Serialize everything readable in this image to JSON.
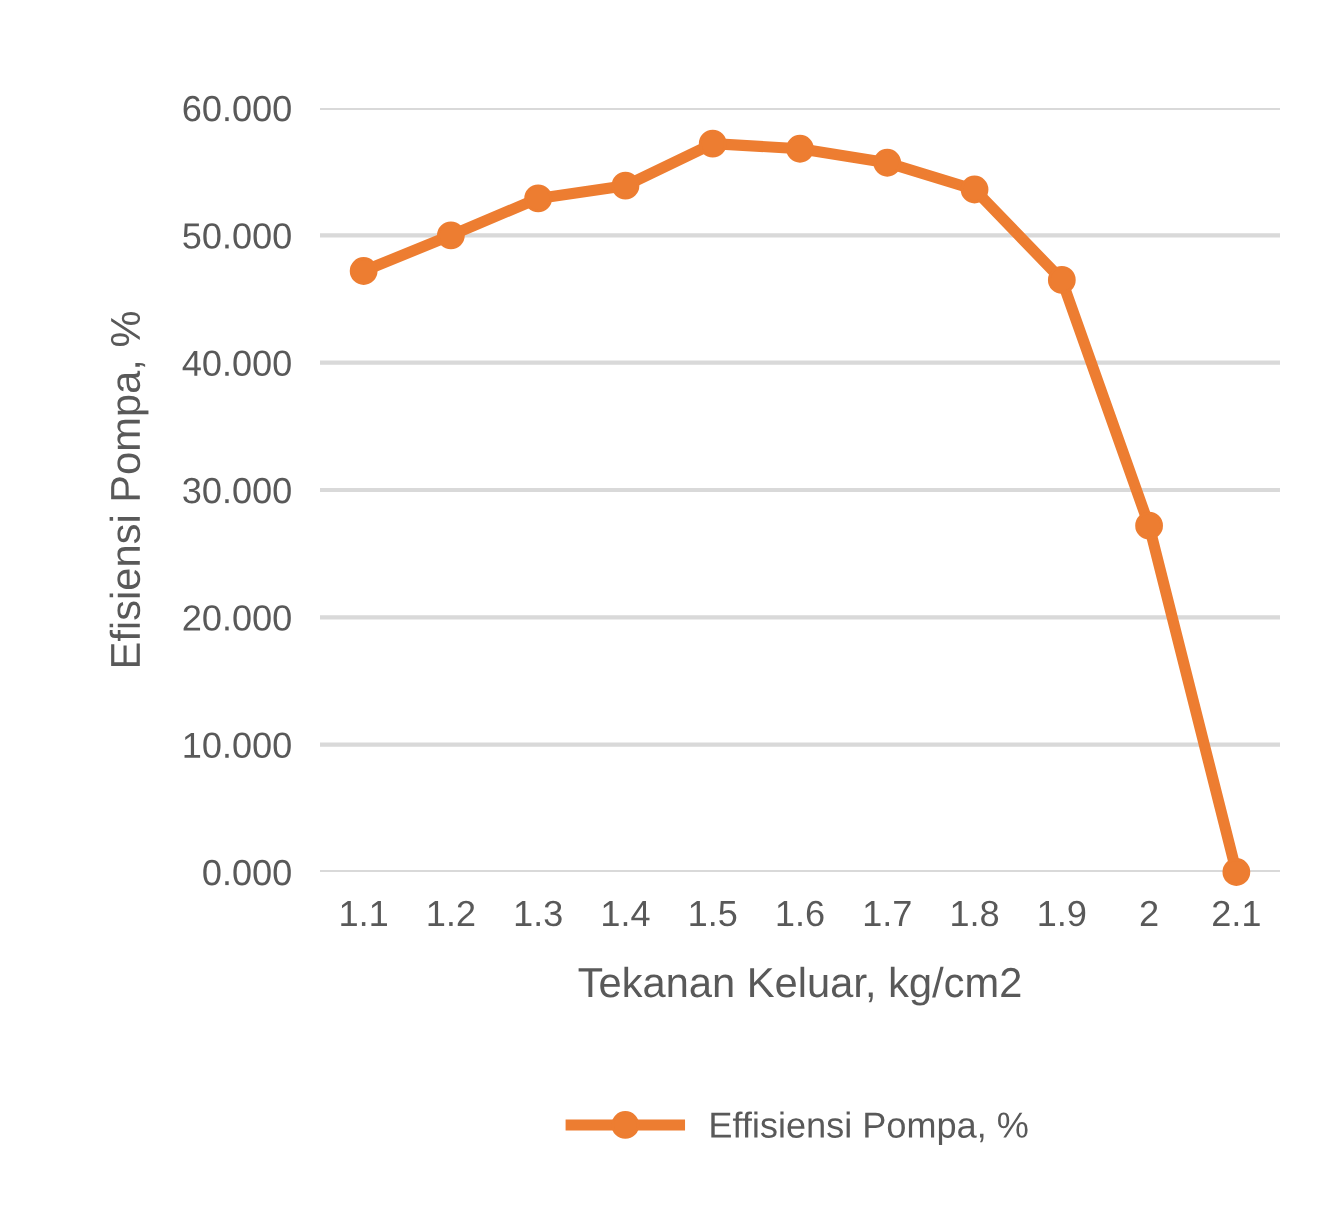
{
  "chart_data": {
    "type": "line",
    "xlabel": "Tekanan Keluar, kg/cm2",
    "ylabel": "Efisiensi Pompa, %",
    "categories": [
      "1.1",
      "1.2",
      "1.3",
      "1.4",
      "1.5",
      "1.6",
      "1.7",
      "1.8",
      "1.9",
      "2",
      "2.1"
    ],
    "series": [
      {
        "name": "Effisiensi Pompa, %",
        "color": "#ed7d31",
        "values": [
          47.2,
          50.0,
          52.9,
          53.9,
          57.2,
          56.8,
          55.7,
          53.6,
          46.5,
          27.2,
          0.0
        ]
      }
    ],
    "ylim": [
      0,
      60
    ],
    "yticks": [
      {
        "value": 0,
        "label": "0.000"
      },
      {
        "value": 10,
        "label": "10.000"
      },
      {
        "value": 20,
        "label": "20.000"
      },
      {
        "value": 30,
        "label": "30.000"
      },
      {
        "value": 40,
        "label": "40.000"
      },
      {
        "value": 50,
        "label": "50.000"
      },
      {
        "value": 60,
        "label": "60.000"
      }
    ],
    "grid": "y",
    "legend": "bottom",
    "marker": "circle",
    "line_style": "solid"
  }
}
